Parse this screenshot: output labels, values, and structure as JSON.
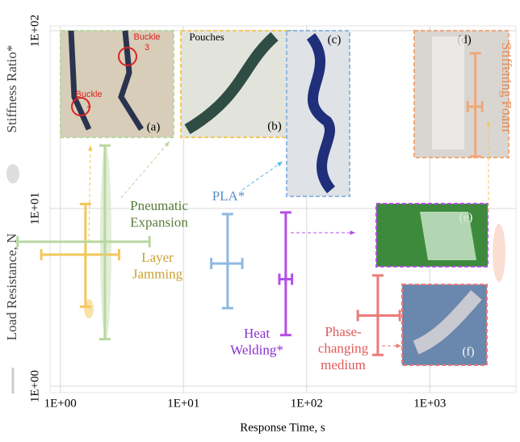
{
  "chart_data": {
    "type": "errorbar",
    "x_label": "Response Time, s",
    "y_label": "Load Resistance, N",
    "size_label": "Stiffness Ratio*",
    "xscale": "log",
    "yscale": "log",
    "grid": true,
    "xlim": [
      0.4,
      5000
    ],
    "ylim": [
      1,
      100
    ],
    "xticks": [
      {
        "value": 1,
        "label": "1E+00"
      },
      {
        "value": 10,
        "label": "1E+01"
      },
      {
        "value": 100,
        "label": "1E+02"
      },
      {
        "value": 1000,
        "label": "1E+03"
      }
    ],
    "yticks": [
      {
        "value": 1,
        "label": "1E+00"
      },
      {
        "value": 10,
        "label": "1E+01"
      },
      {
        "value": 100,
        "label": "1E+02"
      }
    ],
    "series": [
      {
        "name": "Layer\nJamming",
        "color": "#f2c75c",
        "x": 1.6,
        "y": 5.5,
        "xerr": [
          0.7,
          3.0
        ],
        "yerr": [
          2.8,
          10.6
        ]
      },
      {
        "name": "Pneumatic\nExpansion",
        "color": "#b9d7a0",
        "x": 2.3,
        "y": 6.5,
        "xerr": [
          0.45,
          5.3
        ],
        "yerr": [
          1.84,
          22.6
        ]
      },
      {
        "name": "PLA*",
        "color": "#8fb9e0",
        "x": 22.8,
        "y": 4.9,
        "xerr": [
          16.8,
          30
        ],
        "yerr": [
          2.75,
          9.3
        ]
      },
      {
        "name": "Heat\nWelding*",
        "color": "#b44fe8",
        "x": 67.6,
        "y": 4.0,
        "xerr": [
          60,
          76
        ],
        "yerr": [
          1.94,
          9.5
        ]
      },
      {
        "name": "Phase-\nchanging\nmedium",
        "color": "#ee7a7a",
        "x": 378,
        "y": 2.5,
        "xerr": [
          260,
          570
        ],
        "yerr": [
          1.5,
          4.2
        ]
      },
      {
        "name": "Stiffening Foam",
        "color": "#f0a878",
        "x": 2340,
        "y": 37.4,
        "xerr": [
          2030,
          2660
        ],
        "yerr": [
          19.6,
          74.6
        ]
      }
    ],
    "photos": [
      {
        "label": "(a)",
        "color": "#b9d7a0",
        "notes": [
          "Buckle\n1",
          "Buckle\n3"
        ]
      },
      {
        "label": "(b)",
        "color": "#f2c75c",
        "notes": [
          "Pouches"
        ]
      },
      {
        "label": "(c)",
        "color": "#8fb9e0",
        "notes": []
      },
      {
        "label": "(d)",
        "color": "#f0a878",
        "notes": []
      },
      {
        "label": "(e)",
        "color": "#b44fe8",
        "notes": []
      },
      {
        "label": "(f)",
        "color": "#ee7a7a",
        "notes": []
      }
    ]
  }
}
